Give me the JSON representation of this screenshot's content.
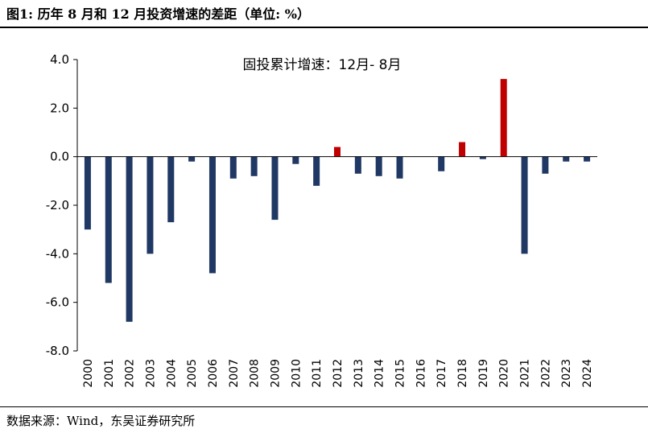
{
  "figure": {
    "title": "图1:  历年 8 月和 12 月投资增速的差距（单位:  %）",
    "source": "数据来源：Wind，东吴证券研究所"
  },
  "chart_data": {
    "type": "bar",
    "title": "",
    "xlabel": "",
    "ylabel": "",
    "annotation": "固投累计增速：12月- 8月",
    "categories": [
      "2000",
      "2001",
      "2002",
      "2003",
      "2004",
      "2005",
      "2006",
      "2007",
      "2008",
      "2009",
      "2010",
      "2011",
      "2012",
      "2013",
      "2014",
      "2015",
      "2016",
      "2017",
      "2018",
      "2019",
      "2020",
      "2021",
      "2022",
      "2023",
      "2024"
    ],
    "values": [
      -3.0,
      -5.2,
      -6.8,
      -4.0,
      -2.7,
      -0.2,
      -4.8,
      -0.9,
      -0.8,
      -2.6,
      -0.3,
      -1.2,
      0.4,
      -0.7,
      -0.8,
      -0.9,
      0.0,
      -0.6,
      0.6,
      -0.1,
      3.2,
      -4.0,
      -0.7,
      -0.2,
      -0.2
    ],
    "ylim": [
      -8,
      4
    ],
    "yticks": [
      "4.0",
      "2.0",
      "0.0",
      "-2.0",
      "-4.0",
      "-6.0",
      "-8.0"
    ],
    "grid": false,
    "colors": {
      "negative": "#1f3864",
      "positive": "#c00000"
    }
  }
}
